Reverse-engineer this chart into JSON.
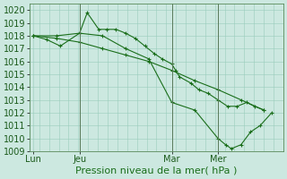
{
  "title": "Pression niveau de la mer( hPa )",
  "ylim": [
    1009,
    1020.5
  ],
  "yticks": [
    1009,
    1010,
    1011,
    1012,
    1013,
    1014,
    1015,
    1016,
    1017,
    1018,
    1019,
    1020
  ],
  "background_color": "#cce8e0",
  "grid_color": "#99ccbb",
  "line_color": "#1a6e1a",
  "x_tick_labels": [
    "Lun",
    "Jeu",
    "Mar",
    "Mer"
  ],
  "x_tick_positions": [
    0,
    24,
    72,
    96
  ],
  "xlim": [
    -2,
    130
  ],
  "vline_positions": [
    24,
    72,
    96
  ],
  "series1_x": [
    0,
    12,
    24,
    28,
    34,
    38,
    43,
    48,
    53,
    58,
    63,
    67,
    72,
    74,
    76,
    82,
    86,
    91,
    96,
    101,
    106,
    111,
    115,
    120
  ],
  "series1_y": [
    1018.0,
    1018.0,
    1018.2,
    1019.8,
    1018.5,
    1018.5,
    1018.5,
    1018.2,
    1017.8,
    1017.2,
    1016.6,
    1016.2,
    1015.8,
    1015.3,
    1014.8,
    1014.3,
    1013.8,
    1013.5,
    1013.0,
    1012.5,
    1012.5,
    1012.8,
    1012.5,
    1012.2
  ],
  "series2_x": [
    0,
    12,
    24,
    36,
    48,
    60,
    72,
    84,
    96,
    108,
    120
  ],
  "series2_y": [
    1018.0,
    1017.8,
    1017.5,
    1017.0,
    1016.5,
    1016.0,
    1015.3,
    1014.5,
    1013.8,
    1013.0,
    1012.2
  ],
  "series3_x": [
    0,
    7,
    14,
    24,
    36,
    48,
    60,
    72,
    84,
    96,
    100,
    103,
    108,
    113,
    118,
    124
  ],
  "series3_y": [
    1018.0,
    1017.7,
    1017.2,
    1018.2,
    1018.0,
    1017.0,
    1016.2,
    1012.8,
    1012.2,
    1010.0,
    1009.5,
    1009.2,
    1009.5,
    1010.5,
    1011.0,
    1012.0
  ],
  "fontsize_label": 8,
  "fontsize_tick": 7
}
